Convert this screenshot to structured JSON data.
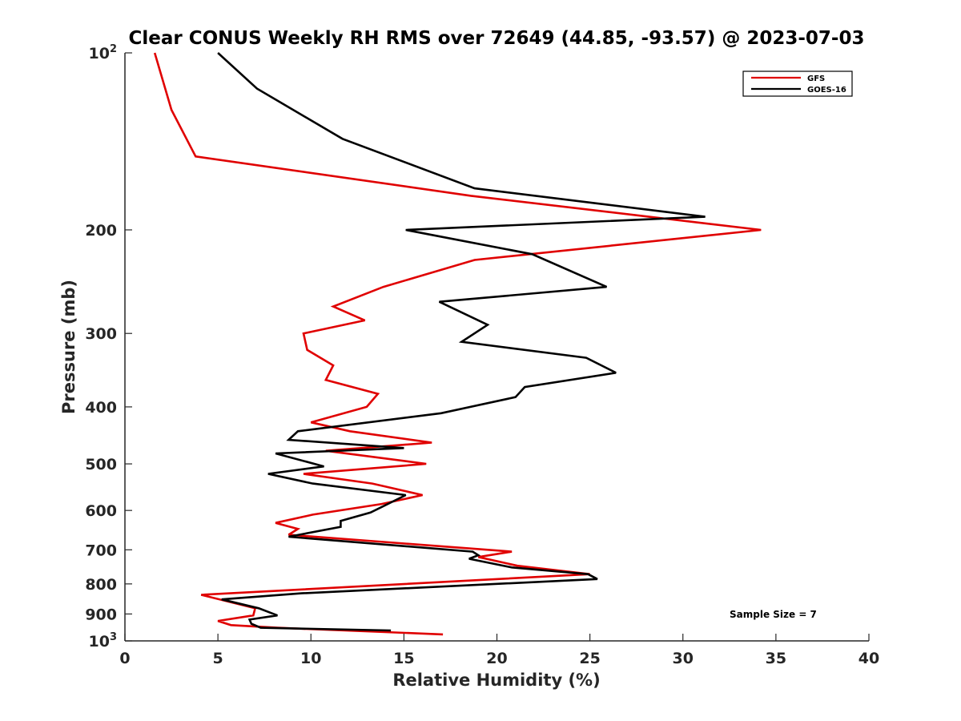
{
  "chart_data": {
    "type": "line",
    "title": "Clear CONUS Weekly RH RMS over 72649 (44.85, -93.57) @ 2023-07-03",
    "xlabel": "Relative Humidity (%)",
    "ylabel": "Pressure (mb)",
    "xlim": [
      0,
      40
    ],
    "ylim": [
      100,
      1000
    ],
    "y_scale": "log",
    "y_direction": "reversed",
    "grid": false,
    "legend_position": "top-right",
    "x_ticks": [
      {
        "value": 0,
        "label": "0"
      },
      {
        "value": 5,
        "label": "5"
      },
      {
        "value": 10,
        "label": "10"
      },
      {
        "value": 15,
        "label": "15"
      },
      {
        "value": 20,
        "label": "20"
      },
      {
        "value": 25,
        "label": "25"
      },
      {
        "value": 30,
        "label": "30"
      },
      {
        "value": 35,
        "label": "35"
      },
      {
        "value": 40,
        "label": "40"
      }
    ],
    "y_ticks": [
      {
        "value": 100,
        "base": "10",
        "exp": "2"
      },
      {
        "value": 200,
        "base": "200",
        "exp": ""
      },
      {
        "value": 300,
        "base": "300",
        "exp": ""
      },
      {
        "value": 400,
        "base": "400",
        "exp": ""
      },
      {
        "value": 500,
        "base": "500",
        "exp": ""
      },
      {
        "value": 600,
        "base": "600",
        "exp": ""
      },
      {
        "value": 700,
        "base": "700",
        "exp": ""
      },
      {
        "value": 800,
        "base": "800",
        "exp": ""
      },
      {
        "value": 900,
        "base": "900",
        "exp": ""
      },
      {
        "value": 1000,
        "base": "10",
        "exp": "3"
      }
    ],
    "series": [
      {
        "name": "GFS",
        "color": "#e00000",
        "points": [
          [
            1.6,
            100
          ],
          [
            2.5,
            125
          ],
          [
            3.8,
            150
          ],
          [
            18.6,
            175
          ],
          [
            34.2,
            200
          ],
          [
            18.8,
            225
          ],
          [
            13.9,
            250
          ],
          [
            11.2,
            270
          ],
          [
            12.9,
            285
          ],
          [
            9.6,
            300
          ],
          [
            9.8,
            320
          ],
          [
            11.2,
            340
          ],
          [
            10.8,
            360
          ],
          [
            13.6,
            380
          ],
          [
            13.0,
            400
          ],
          [
            10.0,
            425
          ],
          [
            12.1,
            440
          ],
          [
            16.5,
            460
          ],
          [
            10.8,
            475
          ],
          [
            16.2,
            500
          ],
          [
            9.6,
            520
          ],
          [
            13.3,
            540
          ],
          [
            16.0,
            565
          ],
          [
            13.8,
            585
          ],
          [
            10.1,
            610
          ],
          [
            8.1,
            630
          ],
          [
            9.3,
            645
          ],
          [
            8.8,
            660
          ],
          [
            20.8,
            705
          ],
          [
            19.0,
            720
          ],
          [
            21.1,
            745
          ],
          [
            25.0,
            770
          ],
          [
            4.1,
            835
          ],
          [
            7.0,
            880
          ],
          [
            6.9,
            905
          ],
          [
            5.0,
            925
          ],
          [
            5.7,
            940
          ],
          [
            8.2,
            950
          ],
          [
            17.1,
            975
          ]
        ]
      },
      {
        "name": "GOES-16",
        "color": "#000000",
        "points": [
          [
            5.0,
            100
          ],
          [
            7.1,
            115
          ],
          [
            11.7,
            140
          ],
          [
            18.8,
            170
          ],
          [
            31.2,
            190
          ],
          [
            15.1,
            200
          ],
          [
            21.9,
            220
          ],
          [
            25.9,
            250
          ],
          [
            16.9,
            265
          ],
          [
            19.5,
            290
          ],
          [
            18.1,
            310
          ],
          [
            24.8,
            330
          ],
          [
            26.4,
            350
          ],
          [
            21.5,
            370
          ],
          [
            21.0,
            385
          ],
          [
            17.0,
            410
          ],
          [
            9.3,
            440
          ],
          [
            8.8,
            455
          ],
          [
            15.0,
            470
          ],
          [
            8.1,
            480
          ],
          [
            10.7,
            505
          ],
          [
            7.7,
            520
          ],
          [
            10.1,
            540
          ],
          [
            15.1,
            565
          ],
          [
            13.2,
            605
          ],
          [
            11.6,
            625
          ],
          [
            11.6,
            640
          ],
          [
            8.8,
            665
          ],
          [
            18.7,
            705
          ],
          [
            19.0,
            715
          ],
          [
            18.5,
            725
          ],
          [
            20.8,
            750
          ],
          [
            24.9,
            770
          ],
          [
            25.4,
            785
          ],
          [
            9.5,
            830
          ],
          [
            5.2,
            850
          ],
          [
            7.2,
            880
          ],
          [
            8.2,
            905
          ],
          [
            6.7,
            920
          ],
          [
            6.8,
            935
          ],
          [
            7.3,
            950
          ],
          [
            14.3,
            960
          ]
        ]
      }
    ],
    "annotation": "Sample Size = 7"
  }
}
